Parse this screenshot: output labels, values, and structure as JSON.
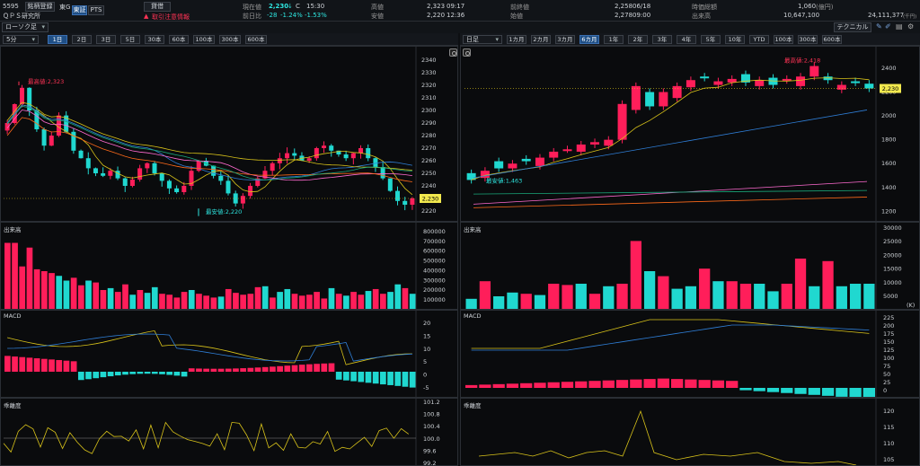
{
  "header": {
    "code": "5595",
    "register_btn": "銘柄登録",
    "exchange": "東G",
    "name": "ＱＰＳ研究所",
    "market_btn_1": "東証",
    "market_btn_2": "PTS",
    "credit_btn": "貸借",
    "warning_text": "取引注意情報",
    "price_label": "現在値",
    "price": "2,230",
    "price_arrow": "↓",
    "price_flag": "C",
    "price_time": "15:30",
    "change_label": "前日比",
    "change": "-28",
    "change_pct": "-1.24%",
    "change_pct2": "-1.53%",
    "high_label": "高値",
    "high": "2,323",
    "high_time": "09:17",
    "low_label": "安値",
    "low": "2,220",
    "low_time": "12:36",
    "prev_label": "前終値",
    "prev": "2,258",
    "prev_date": "06/18",
    "open_label": "始値",
    "open": "2,278",
    "open_time": "09:00",
    "mcap_label": "時価総額",
    "mcap": "1,060",
    "mcap_unit": "(億円)",
    "volume_label": "出来高",
    "volume": "10,647,100",
    "turnover": "24,111,377",
    "turnover_unit": "(千円)",
    "chart_type": "ローソク足",
    "tech_btn": "テクニカル"
  },
  "left": {
    "interval": "5分",
    "tabs": [
      "1日",
      "2日",
      "3日",
      "5日",
      "30本",
      "60本",
      "100本",
      "300本",
      "600本"
    ],
    "active_tab": 0,
    "high_note": "最高値:2,323",
    "low_note": "最安値:2,220",
    "price_tag": "2,230",
    "price_axis": [
      "2340",
      "2330",
      "2320",
      "2310",
      "2300",
      "2290",
      "2280",
      "2270",
      "2260",
      "2250",
      "2240",
      "2230",
      "2220"
    ],
    "vol_label": "出来高",
    "vol_axis": [
      "800000",
      "700000",
      "600000",
      "500000",
      "400000",
      "300000",
      "200000",
      "100000"
    ],
    "macd_label": "MACD",
    "macd_axis": [
      "20",
      "15",
      "10",
      "5",
      "0",
      "-5"
    ],
    "dev_label": "乖離度",
    "dev_axis": [
      "101.2",
      "100.8",
      "100.4",
      "100.0",
      "99.6",
      "99.2"
    ]
  },
  "right": {
    "interval": "日足",
    "tabs": [
      "1カ月",
      "2カ月",
      "3カ月",
      "6カ月",
      "1年",
      "2年",
      "3年",
      "4年",
      "5年",
      "10年",
      "YTD",
      "100本",
      "300本",
      "600本"
    ],
    "active_tab": 3,
    "high_note": "最高値:2,418",
    "low_note": "最安値:1,463",
    "price_tag": "2,230",
    "price_axis": [
      "2400",
      "2200",
      "2000",
      "1800",
      "1600",
      "1400",
      "1200"
    ],
    "vol_label": "出来高",
    "vol_axis": [
      "30000",
      "25000",
      "20000",
      "15000",
      "10000",
      "5000"
    ],
    "vol_unit": "(K)",
    "macd_label": "MACD",
    "macd_axis": [
      "225",
      "200",
      "175",
      "150",
      "125",
      "100",
      "75",
      "50",
      "25",
      "0"
    ],
    "dev_label": "乖離度",
    "dev_axis": [
      "120",
      "115",
      "110",
      "105"
    ]
  },
  "colors": {
    "up": "#ff1e5a",
    "down": "#20d8d0",
    "ma1": "#d9c31a",
    "ma2": "#2f7fd8",
    "ma3": "#ff6ad0",
    "ma4": "#ff6a1a",
    "ma5": "#1aa87a"
  },
  "chart_data": [
    {
      "type": "line",
      "title": "5分",
      "ylim": [
        2215,
        2345
      ],
      "series": [
        {
          "values": [
            2290,
            2305,
            2318,
            2300,
            2285,
            2272,
            2280,
            2296,
            2283,
            2268,
            2262,
            2254,
            2250,
            2248,
            2252,
            2246,
            2240,
            2245,
            2254,
            2258,
            2250,
            2244,
            2238,
            2235,
            2240,
            2252,
            2260,
            2256,
            2248,
            2244,
            2234,
            2226,
            2232,
            2240,
            2246,
            2252,
            2258,
            2262,
            2266,
            2264,
            2260,
            2262,
            2270,
            2272,
            2268,
            2265,
            2262,
            2266,
            2270,
            2262,
            2255,
            2246,
            2236,
            2228,
            2225,
            2230
          ]
        }
      ]
    },
    {
      "type": "line",
      "title": "日足",
      "ylim": [
        1150,
        2520
      ],
      "series": [
        {
          "values": [
            1463,
            1540,
            1560,
            1600,
            1620,
            1650,
            1700,
            1720,
            1760,
            1780,
            1800,
            2100,
            2250,
            2080,
            2200,
            2250,
            2300,
            2320,
            2290,
            2310,
            2280,
            2300,
            2260,
            2310,
            2330,
            2418,
            2300,
            2260,
            2280,
            2230
          ]
        }
      ]
    }
  ]
}
